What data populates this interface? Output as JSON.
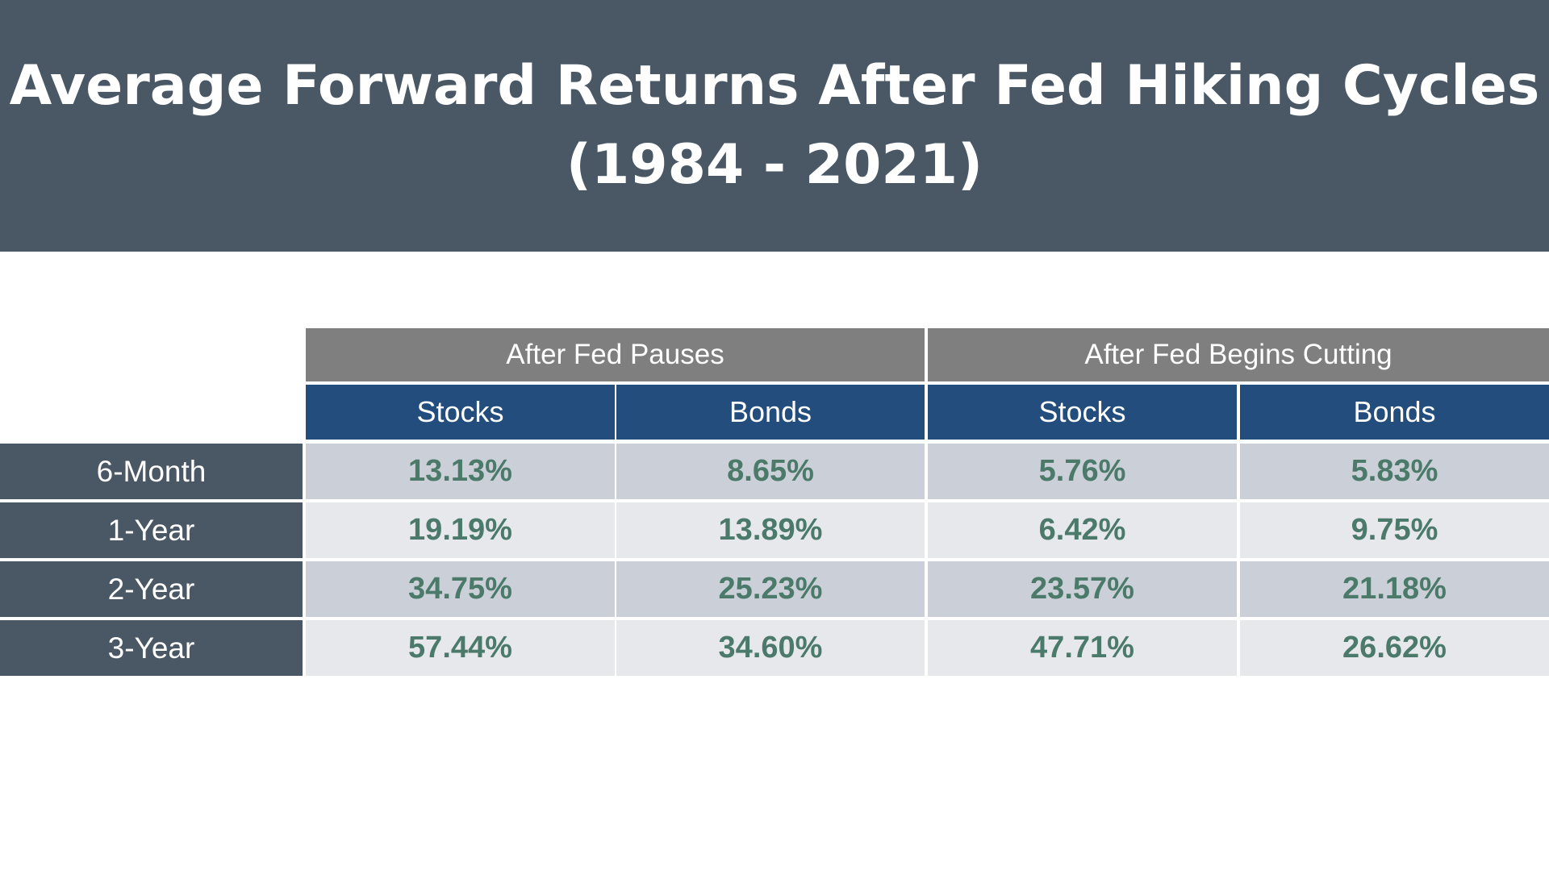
{
  "title_line1": "Average Forward Returns After Fed Hiking Cycles",
  "title_line2": "(1984 - 2021)",
  "chart_data": {
    "type": "table",
    "title": "Average Forward Returns After Fed Hiking Cycles (1984 - 2021)",
    "groups": [
      "After Fed Pauses",
      "After Fed Begins Cutting"
    ],
    "columns": [
      "Stocks",
      "Bonds",
      "Stocks",
      "Bonds"
    ],
    "rows": [
      {
        "label": "6-Month",
        "values": [
          "13.13%",
          "8.65%",
          "5.76%",
          "5.83%"
        ]
      },
      {
        "label": "1-Year",
        "values": [
          "19.19%",
          "13.89%",
          "6.42%",
          "9.75%"
        ]
      },
      {
        "label": "2-Year",
        "values": [
          "34.75%",
          "25.23%",
          "23.57%",
          "21.18%"
        ]
      },
      {
        "label": "3-Year",
        "values": [
          "57.44%",
          "34.60%",
          "47.71%",
          "26.62%"
        ]
      }
    ]
  }
}
